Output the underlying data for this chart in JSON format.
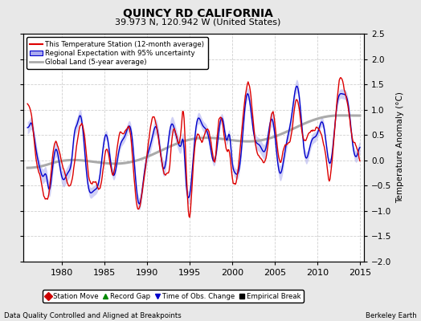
{
  "title": "QUINCY RD CALIFORNIA",
  "subtitle": "39.973 N, 120.942 W (United States)",
  "ylabel": "Temperature Anomaly (°C)",
  "footer_left": "Data Quality Controlled and Aligned at Breakpoints",
  "footer_right": "Berkeley Earth",
  "xlim": [
    1975.5,
    2015.5
  ],
  "ylim": [
    -2.0,
    2.5
  ],
  "yticks": [
    -2,
    -1.5,
    -1,
    -0.5,
    0,
    0.5,
    1,
    1.5,
    2,
    2.5
  ],
  "xticks": [
    1980,
    1985,
    1990,
    1995,
    2000,
    2005,
    2010,
    2015
  ],
  "bg_color": "#e8e8e8",
  "plot_bg_color": "#ffffff",
  "grid_color": "#d0d0d0",
  "red_line_color": "#dd0000",
  "blue_line_color": "#0000cc",
  "fill_color": "#aaaaee",
  "gray_line_color": "#aaaaaa",
  "legend_entries": [
    "This Temperature Station (12-month average)",
    "Regional Expectation with 95% uncertainty",
    "Global Land (5-year average)"
  ],
  "marker_legend": [
    {
      "label": "Station Move",
      "color": "#cc0000",
      "marker": "D"
    },
    {
      "label": "Record Gap",
      "color": "#008800",
      "marker": "^"
    },
    {
      "label": "Time of Obs. Change",
      "color": "#0000cc",
      "marker": "v"
    },
    {
      "label": "Empirical Break",
      "color": "#000000",
      "marker": "s"
    }
  ]
}
